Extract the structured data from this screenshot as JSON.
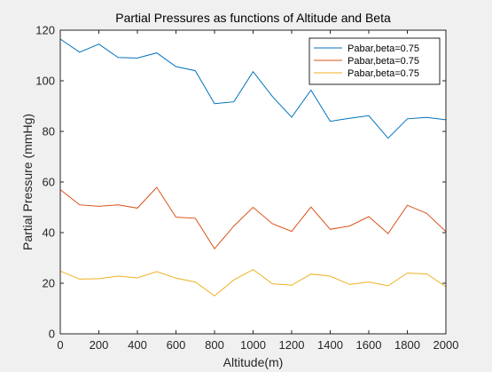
{
  "chart_data": {
    "type": "line",
    "title": "Partial Pressures as functions of Altitude and Beta",
    "xlabel": "Altitude(m)",
    "ylabel": "Partial Pressure (mmHg)",
    "xlim": [
      0,
      2000
    ],
    "ylim": [
      0,
      120
    ],
    "xticks": [
      0,
      200,
      400,
      600,
      800,
      1000,
      1200,
      1400,
      1600,
      1800,
      2000
    ],
    "yticks": [
      0,
      20,
      40,
      60,
      80,
      100,
      120
    ],
    "grid": false,
    "legend_position": "top-right",
    "x": [
      0,
      100,
      200,
      300,
      400,
      500,
      600,
      700,
      800,
      900,
      1000,
      1100,
      1200,
      1300,
      1400,
      1500,
      1600,
      1700,
      1800,
      1900,
      2000
    ],
    "series": [
      {
        "name": "Pabar,beta=0.75",
        "color": "#0072bd",
        "values": [
          116.5,
          111.3,
          114.5,
          109.2,
          109.0,
          111.0,
          105.6,
          104.0,
          91.0,
          91.7,
          103.6,
          93.8,
          85.6,
          96.3,
          84.0,
          85.2,
          86.2,
          77.3,
          85.0,
          85.5,
          84.6
        ]
      },
      {
        "name": "Pabar,beta=0.75",
        "color": "#d95319",
        "values": [
          57.0,
          51.0,
          50.4,
          51.0,
          49.7,
          57.9,
          46.1,
          45.7,
          33.6,
          42.6,
          50.0,
          43.5,
          40.5,
          50.1,
          41.3,
          42.6,
          46.3,
          39.6,
          50.8,
          47.6,
          40.4
        ]
      },
      {
        "name": "Pabar,beta=0.75",
        "color": "#edb120",
        "values": [
          24.8,
          21.6,
          21.8,
          22.8,
          22.1,
          24.6,
          22.0,
          20.5,
          15.0,
          21.3,
          25.4,
          19.8,
          19.2,
          23.6,
          22.8,
          19.5,
          20.5,
          19.0,
          24.0,
          23.7,
          18.6
        ]
      }
    ]
  }
}
